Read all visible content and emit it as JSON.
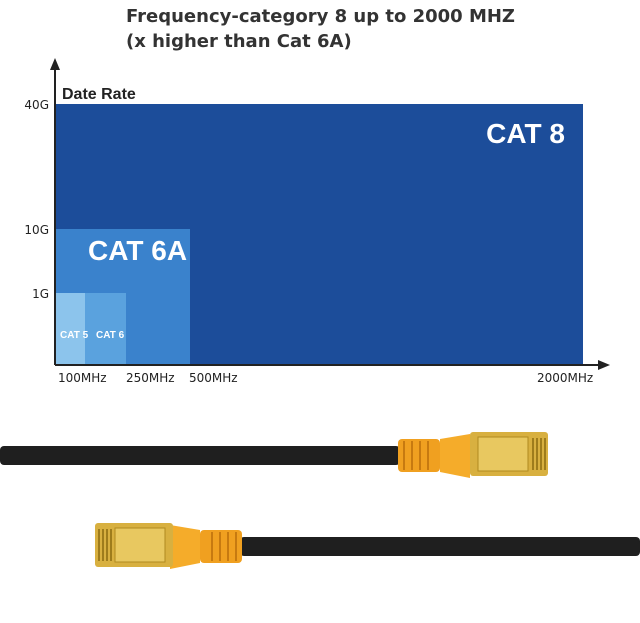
{
  "header": {
    "title_line1": "Frequency-category 8 up to 2000 MHZ",
    "title_line2": "(x higher than Cat 6A)"
  },
  "chart_data": {
    "type": "area",
    "ylabel": "Date Rate",
    "y_ticks": [
      "40G",
      "10G",
      "1G"
    ],
    "x_ticks": [
      "100MHz",
      "250MHz",
      "500MHz",
      "2000MHz"
    ],
    "series": [
      {
        "name": "CAT 8",
        "frequency_mhz": 2000,
        "data_rate": "40G",
        "color": "#1c4d9a"
      },
      {
        "name": "CAT 6A",
        "frequency_mhz": 500,
        "data_rate": "10G",
        "color": "#3a82cc"
      },
      {
        "name": "CAT 6",
        "frequency_mhz": 250,
        "data_rate": "1G",
        "color": "#5aa2de"
      },
      {
        "name": "CAT 5",
        "frequency_mhz": 100,
        "data_rate": "1G",
        "color": "#8cc4ec"
      }
    ]
  },
  "product": {
    "cable_color": "#1f1f1f",
    "boot_color": "#f0a020",
    "plug_color": "#d8b040"
  }
}
